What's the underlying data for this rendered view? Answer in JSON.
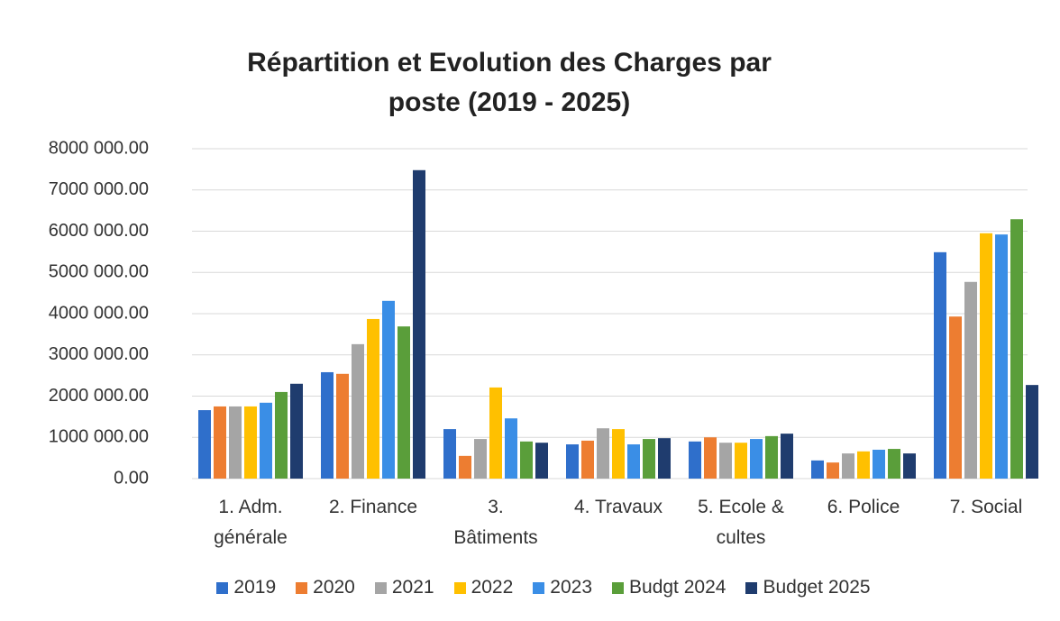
{
  "chart_data": {
    "type": "bar",
    "title": "Répartition et Evolution des Charges par poste (2019 - 2025)",
    "categories": [
      "1. Adm. générale",
      "2. Finance",
      "3. Bâtiments",
      "4. Travaux",
      "5. Ecole & cultes",
      "6. Police",
      "7. Social"
    ],
    "series": [
      {
        "name": "2019",
        "color": "#2f6fcb",
        "values": [
          1660000,
          2580000,
          1200000,
          830000,
          900000,
          440000,
          5490000
        ]
      },
      {
        "name": "2020",
        "color": "#ed7d31",
        "values": [
          1750000,
          2540000,
          550000,
          920000,
          1000000,
          390000,
          3930000
        ]
      },
      {
        "name": "2021",
        "color": "#a5a5a5",
        "values": [
          1750000,
          3260000,
          960000,
          1220000,
          870000,
          610000,
          4770000
        ]
      },
      {
        "name": "2022",
        "color": "#ffc000",
        "values": [
          1750000,
          3870000,
          2210000,
          1200000,
          870000,
          660000,
          5950000
        ]
      },
      {
        "name": "2023",
        "color": "#3a8ee6",
        "values": [
          1840000,
          4310000,
          1460000,
          830000,
          960000,
          700000,
          5920000
        ]
      },
      {
        "name": "Budgt 2024",
        "color": "#5a9e3a",
        "values": [
          2100000,
          3690000,
          900000,
          960000,
          1030000,
          720000,
          6290000
        ]
      },
      {
        "name": "Budget 2025",
        "color": "#1f3c6e",
        "values": [
          2300000,
          7480000,
          870000,
          980000,
          1090000,
          610000,
          2270000
        ]
      }
    ],
    "ylim": [
      0,
      8000000
    ],
    "yticks": [
      {
        "value": 0,
        "label": "0.00"
      },
      {
        "value": 1000000,
        "label": "1000 000.00"
      },
      {
        "value": 2000000,
        "label": "2000 000.00"
      },
      {
        "value": 3000000,
        "label": "3000 000.00"
      },
      {
        "value": 4000000,
        "label": "4000 000.00"
      },
      {
        "value": 5000000,
        "label": "5000 000.00"
      },
      {
        "value": 6000000,
        "label": "6000 000.00"
      },
      {
        "value": 7000000,
        "label": "7000 000.00"
      },
      {
        "value": 8000000,
        "label": "8000 000.00"
      }
    ],
    "grid": true,
    "legend": "bottom"
  }
}
